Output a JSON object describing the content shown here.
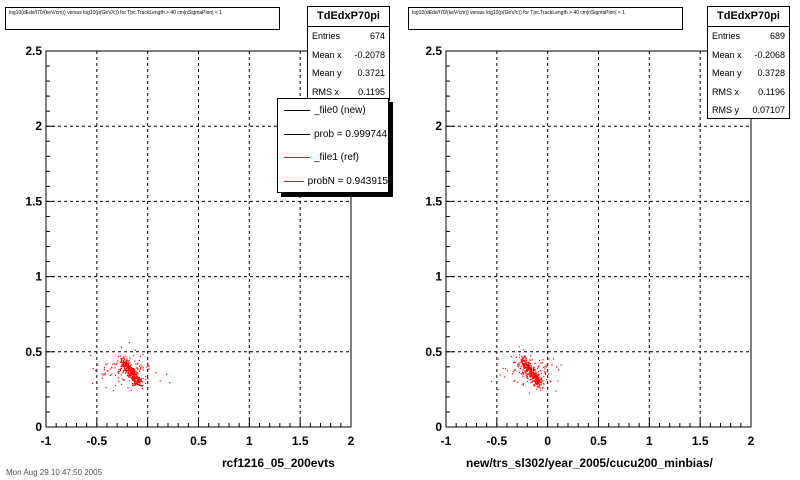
{
  "colors": {
    "series0": "#000000",
    "series1": "#ff0000",
    "grid": "#000000"
  },
  "panels": [
    {
      "title": "log10(dEdx/I70/(keV/cm)) versus log10(p(GeV/c)) for Tpc.TrackLength > 40 cm|nSigmaPion| < 1",
      "stats": {
        "name": "TdEdxP70pi",
        "rows": [
          {
            "label": "Entries",
            "value": "674"
          },
          {
            "label": "Mean x",
            "value": "-0.2078"
          },
          {
            "label": "Mean y",
            "value": "0.3721"
          },
          {
            "label": "RMS x",
            "value": "0.1195"
          }
        ]
      },
      "legend": [
        {
          "label": "_file0 (new)",
          "color": "#000000"
        },
        {
          "label": "prob = 0.999744",
          "color": "#000000"
        },
        {
          "label": "_file1 (ref)",
          "color": "#ff0000"
        },
        {
          "label": "probN = 0.943915",
          "color": "#ff0000"
        }
      ],
      "xlabel": "rcf1216_05_200evts",
      "footer": "Mon Aug 29 10:47:50 2005"
    },
    {
      "title": "log10(dEdx/I70/(keV/cm)) versus log10(p(GeV/c)) for Tpc.TrackLength > 40 cm|nSigmaPion| < 1",
      "stats": {
        "name": "TdEdxP70pi",
        "rows": [
          {
            "label": "Entries",
            "value": "689"
          },
          {
            "label": "Mean x",
            "value": "-0.2068"
          },
          {
            "label": "Mean y",
            "value": "0.3728"
          },
          {
            "label": "RMS x",
            "value": "0.1196"
          },
          {
            "label": "RMS y",
            "value": "0.07107"
          }
        ]
      },
      "xlabel": "new/trs_sl302/year_2005/cucu200_minbias/"
    }
  ],
  "chart_data": [
    {
      "type": "scatter",
      "xlim": [
        -1,
        2
      ],
      "ylim": [
        0,
        2.5
      ],
      "xticks": [
        "-1",
        "-0.5",
        "0",
        "0.5",
        "1",
        "1.5",
        "2"
      ],
      "yticks": [
        "0",
        "0.5",
        "1",
        "1.5",
        "2",
        "2.5"
      ],
      "grid": true,
      "legend_position": "top-right",
      "xlabel": "rcf1216_05_200evts",
      "series": [
        {
          "name": "_file1 (ref)",
          "color": "#ff0000",
          "entries": 674,
          "mean_x": -0.2078,
          "mean_y": 0.3721,
          "rms_x": 0.1195
        }
      ]
    },
    {
      "type": "scatter",
      "xlim": [
        -1,
        2
      ],
      "ylim": [
        0,
        2.5
      ],
      "xticks": [
        "-1",
        "-0.5",
        "0",
        "0.5",
        "1",
        "1.5",
        "2"
      ],
      "yticks": [
        "0",
        "0.5",
        "1",
        "1.5",
        "2",
        "2.5"
      ],
      "grid": true,
      "xlabel": "new/trs_sl302/year_2005/cucu200_minbias/",
      "series": [
        {
          "name": "",
          "color": "#ff0000",
          "entries": 689,
          "mean_x": -0.2068,
          "mean_y": 0.3728,
          "rms_x": 0.1196,
          "rms_y": 0.07107
        }
      ]
    }
  ]
}
